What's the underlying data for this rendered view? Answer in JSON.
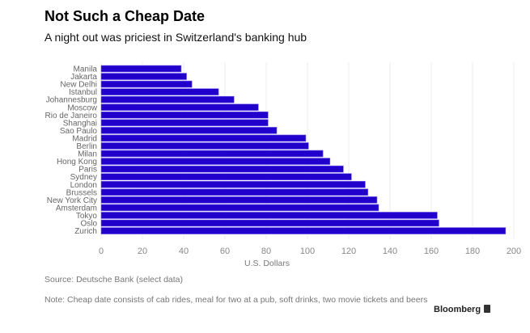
{
  "chart_data": {
    "type": "bar",
    "orientation": "horizontal",
    "title": "Not Such a Cheap Date",
    "subtitle": "A night out was priciest in Switzerland's banking hub",
    "xlabel": "U.S. Dollars",
    "ylabel": "",
    "xlim": [
      0,
      200
    ],
    "xticks": [
      0,
      20,
      40,
      60,
      80,
      100,
      120,
      140,
      160,
      180,
      200
    ],
    "grid": true,
    "bar_color": "#2200cc",
    "categories": [
      "Manila",
      "Jakarta",
      "New Delhi",
      "Istanbul",
      "Johannesburg",
      "Moscow",
      "Rio de Janeiro",
      "Shanghai",
      "Sao Paulo",
      "Madrid",
      "Berlin",
      "Milan",
      "Hong Kong",
      "Paris",
      "Sydney",
      "London",
      "Brussels",
      "New York City",
      "Amsterdam",
      "Tokyo",
      "Oslo",
      "Zurich"
    ],
    "values": [
      38.8,
      41.4,
      44.0,
      56.9,
      64.4,
      76.2,
      80.9,
      80.9,
      85.1,
      99.2,
      100.5,
      107.5,
      110.9,
      117.4,
      121.3,
      128.0,
      129.3,
      133.7,
      134.5,
      162.9,
      163.7,
      196.0
    ]
  },
  "footer": {
    "source": "Source: Deutsche Bank (select data)",
    "note": "Note: Cheap date consists of cab rides, meal for two at a pub, soft drinks, two movie tickets and beers",
    "brand": "Bloomberg"
  }
}
